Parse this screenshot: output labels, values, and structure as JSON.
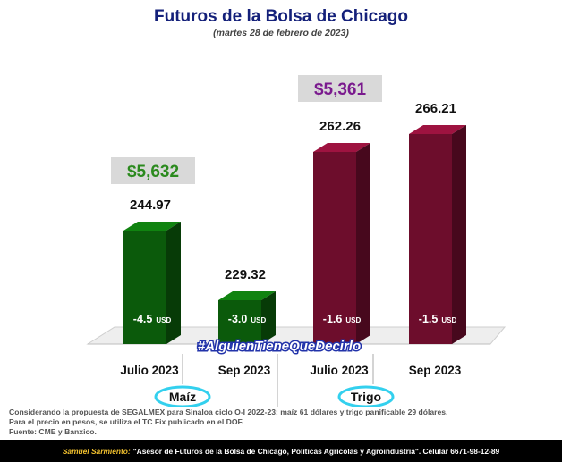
{
  "header": {
    "title": "Futuros de la Bolsa de Chicago",
    "subtitle": "(martes 28 de febrero de 2023)"
  },
  "chart_data": {
    "type": "bar",
    "title": "Futuros de la Bolsa de Chicago",
    "subtitle": "(martes 28 de febrero de 2023)",
    "categories": [
      "Julio 2023",
      "Sep 2023",
      "Julio 2023",
      "Sep 2023"
    ],
    "values": [
      244.97,
      229.32,
      262.26,
      266.21
    ],
    "value_labels": [
      "244.97",
      "229.32",
      "262.26",
      "266.21"
    ],
    "changes": [
      "-4.5",
      "-3.0",
      "-1.6",
      "-1.5"
    ],
    "change_unit": "USD",
    "groups": [
      {
        "name": "Maíz",
        "categories": [
          0,
          1
        ],
        "price": "$5,632",
        "color": "#0b5a0b",
        "price_color": "#2b8a1e"
      },
      {
        "name": "Trigo",
        "categories": [
          2,
          3
        ],
        "price": "$5,361",
        "color": "#6d0d2c",
        "price_color": "#7a1a8e"
      }
    ],
    "watermark": "#AlguienTieneQueDecirlo",
    "ylim": [
      200,
      280
    ],
    "xlabel": "",
    "ylabel": "",
    "grid": false,
    "legend": "none"
  },
  "footnote": {
    "lines": [
      "Considerando la propuesta de SEGALMEX para Sinaloa ciclo O-I 2022-23: maíz 61 dólares y trigo panificable 29 dólares.",
      "Para el precio en pesos, se utiliza el TC Fix publicado en el DOF.",
      "Fuente: CME y Banxico."
    ]
  },
  "banner": {
    "author": "Samuel Sarmiento:",
    "text": "\"Asesor de Futuros de la Bolsa de Chicago, Políticas Agrícolas y Agroindustria\". Celular 6671-98-12-89"
  },
  "colors": {
    "title": "#14207a",
    "subtitle": "#444444",
    "floor": "#e8e8e8"
  }
}
